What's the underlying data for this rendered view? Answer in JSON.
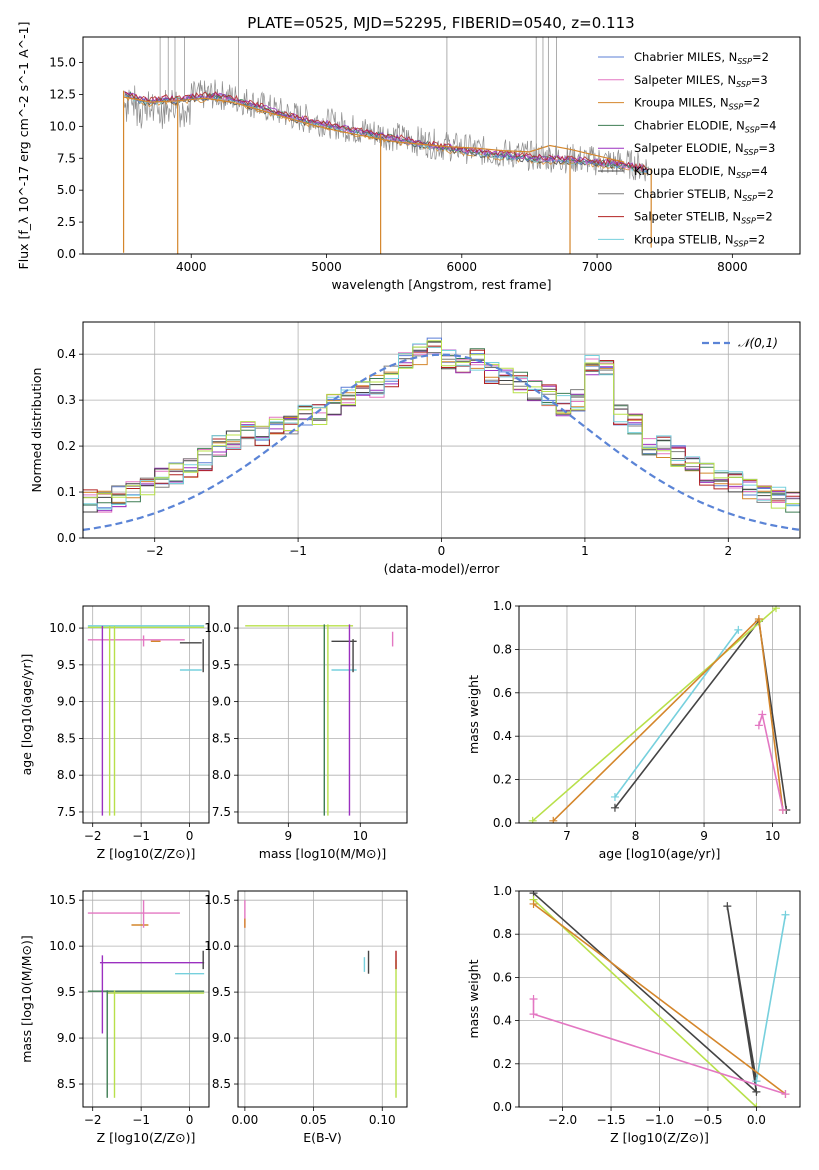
{
  "chart_data": [
    {
      "id": "spectrum",
      "type": "line",
      "title": "PLATE=0525, MJD=52295, FIBERID=0540, z=0.113",
      "xlabel": "wavelength [Angstrom, rest frame]",
      "ylabel": "Flux [f_λ 10^-17 erg cm^-2 s^-1 A^-1]",
      "xlim": [
        3200,
        8500
      ],
      "ylim": [
        0,
        17
      ],
      "xticks": [
        4000,
        5000,
        6000,
        7000,
        8000
      ],
      "yticks": [
        0.0,
        2.5,
        5.0,
        7.5,
        10.0,
        12.5,
        15.0
      ],
      "grid": false,
      "legend_position": "top-right",
      "legend": [
        {
          "name": "Chabrier MILES, N_SSP=2",
          "color": "#5b7fd6"
        },
        {
          "name": "Salpeter MILES, N_SSP=3",
          "color": "#e377c2"
        },
        {
          "name": "Kroupa MILES, N_SSP=2",
          "color": "#d4862b"
        },
        {
          "name": "Chabrier ELODIE, N_SSP=4",
          "color": "#3e7d53"
        },
        {
          "name": "Salpeter ELODIE, N_SSP=3",
          "color": "#9b30c0"
        },
        {
          "name": "Kroupa ELODIE, N_SSP=4",
          "color": "#444444"
        },
        {
          "name": "Chabrier STELIB, N_SSP=2",
          "color": "#7f7f7f"
        },
        {
          "name": "Salpeter STELIB, N_SSP=2",
          "color": "#b22222"
        },
        {
          "name": "Kroupa STELIB, N_SSP=2",
          "color": "#76d0dd"
        }
      ],
      "continuum": [
        [
          3500,
          12.8
        ],
        [
          3600,
          12.3
        ],
        [
          3700,
          12.1
        ],
        [
          3800,
          12.3
        ],
        [
          3900,
          12.2
        ],
        [
          4000,
          12.4
        ],
        [
          4200,
          12.5
        ],
        [
          4400,
          12.0
        ],
        [
          4600,
          11.3
        ],
        [
          4800,
          10.7
        ],
        [
          5000,
          10.3
        ],
        [
          5200,
          9.8
        ],
        [
          5400,
          9.4
        ],
        [
          5600,
          9.0
        ],
        [
          5800,
          8.6
        ],
        [
          6000,
          8.3
        ],
        [
          6200,
          8.0
        ],
        [
          6400,
          7.8
        ],
        [
          6600,
          7.6
        ],
        [
          6800,
          7.5
        ],
        [
          7000,
          7.3
        ],
        [
          7200,
          7.1
        ],
        [
          7400,
          6.7
        ]
      ],
      "model_curve": [
        [
          3500,
          12.3
        ],
        [
          3700,
          11.9
        ],
        [
          3900,
          12.0
        ],
        [
          4100,
          12.2
        ],
        [
          4300,
          11.9
        ],
        [
          4500,
          11.3
        ],
        [
          4700,
          10.7
        ],
        [
          4900,
          10.1
        ],
        [
          5100,
          9.6
        ],
        [
          5300,
          9.2
        ],
        [
          5500,
          8.8
        ],
        [
          5700,
          8.6
        ],
        [
          5900,
          8.4
        ],
        [
          6100,
          8.3
        ],
        [
          6300,
          8.1
        ],
        [
          6500,
          8.0
        ],
        [
          6650,
          8.5
        ],
        [
          6800,
          8.2
        ],
        [
          7000,
          7.7
        ],
        [
          7200,
          7.2
        ]
      ],
      "spikes": [
        [
          3500,
          0.1
        ],
        [
          3900,
          0.0
        ],
        [
          5400,
          0.0
        ],
        [
          6800,
          0.0
        ],
        [
          7400,
          0.5
        ]
      ]
    },
    {
      "id": "residuals",
      "type": "line",
      "xlabel": "(data-model)/error",
      "ylabel": "Normed distribution",
      "xlim": [
        -2.5,
        2.5
      ],
      "ylim": [
        0,
        0.47
      ],
      "xticks": [
        -2,
        -1,
        0,
        1,
        2
      ],
      "yticks": [
        0.0,
        0.1,
        0.2,
        0.3,
        0.4
      ],
      "grid": true,
      "legend_position": "top-right",
      "legend": [
        {
          "name": "𝒩(0,1)",
          "color": "#5b84d6"
        }
      ],
      "hist_edges_start": -2.5,
      "hist_bin_width": 0.1,
      "hist_counts": [
        0.08,
        0.08,
        0.09,
        0.1,
        0.11,
        0.13,
        0.14,
        0.15,
        0.17,
        0.2,
        0.21,
        0.23,
        0.22,
        0.24,
        0.25,
        0.27,
        0.27,
        0.29,
        0.31,
        0.33,
        0.33,
        0.35,
        0.38,
        0.4,
        0.42,
        0.39,
        0.37,
        0.39,
        0.36,
        0.35,
        0.34,
        0.32,
        0.31,
        0.29,
        0.3,
        0.38,
        0.38,
        0.27,
        0.25,
        0.2,
        0.2,
        0.18,
        0.17,
        0.14,
        0.13,
        0.12,
        0.11,
        0.1,
        0.09,
        0.08
      ],
      "normal": {
        "mean": 0,
        "sigma": 1
      }
    },
    {
      "id": "age_vs_Z",
      "type": "scatter",
      "xlabel": "Z [log10(Z/Z⊙)]",
      "ylabel": "age [log10(age/yr)]",
      "xlim": [
        -2.2,
        0.4
      ],
      "ylim": [
        7.35,
        10.3
      ],
      "xticks": [
        -2,
        -1,
        0
      ],
      "yticks": [
        7.5,
        8.0,
        8.5,
        9.0,
        9.5,
        10.0
      ],
      "grid": true,
      "hlines": [
        [
          -2.1,
          0.3,
          10.03,
          "#76d0dd"
        ],
        [
          -2.1,
          0.3,
          10.01,
          "#b8e04a"
        ],
        [
          -2.1,
          -0.1,
          9.84,
          "#e377c2"
        ],
        [
          -0.6,
          -0.8,
          9.82,
          "#d4862b"
        ],
        [
          -0.2,
          0.25,
          9.43,
          "#76d0dd"
        ],
        [
          -0.2,
          0.25,
          9.8,
          "#444444"
        ]
      ],
      "vlines": [
        [
          -1.8,
          7.45,
          10.03,
          "#9b30c0"
        ],
        [
          -1.65,
          7.45,
          10.03,
          "#b8e04a"
        ],
        [
          -1.55,
          7.45,
          10.03,
          "#b8e04a"
        ],
        [
          -0.95,
          9.75,
          9.9,
          "#e377c2"
        ],
        [
          0.28,
          9.4,
          9.85,
          "#444444"
        ]
      ]
    },
    {
      "id": "age_vs_mass",
      "type": "scatter",
      "xlabel": "mass [log10(M/M⊙)]",
      "ylabel": "",
      "xlim": [
        8.3,
        10.65
      ],
      "ylim": [
        7.35,
        10.3
      ],
      "xticks": [
        9,
        10
      ],
      "yticks": [
        7.5,
        8.0,
        8.5,
        9.0,
        9.5,
        10.0
      ],
      "grid": true,
      "hlines": [
        [
          8.4,
          9.9,
          10.03,
          "#b8e04a"
        ],
        [
          9.6,
          9.95,
          9.82,
          "#444444"
        ],
        [
          9.6,
          9.95,
          9.43,
          "#76d0dd"
        ]
      ],
      "vlines": [
        [
          9.5,
          7.45,
          10.05,
          "#3e7d53"
        ],
        [
          9.55,
          7.45,
          10.05,
          "#b8e04a"
        ],
        [
          9.85,
          7.45,
          10.05,
          "#9b30c0"
        ],
        [
          9.9,
          9.4,
          9.85,
          "#444444"
        ],
        [
          10.45,
          9.75,
          9.95,
          "#e377c2"
        ]
      ]
    },
    {
      "id": "weight_vs_age",
      "type": "line",
      "xlabel": "age [log10(age/yr)]",
      "ylabel": "mass weight",
      "xlim": [
        6.3,
        10.4
      ],
      "ylim": [
        0,
        1
      ],
      "xticks": [
        7,
        8,
        9,
        10
      ],
      "yticks": [
        0.0,
        0.2,
        0.4,
        0.6,
        0.8,
        1.0
      ],
      "grid": true,
      "series": [
        {
          "color": "#76d0dd",
          "points": [
            [
              7.7,
              0.12
            ],
            [
              9.5,
              0.89
            ]
          ]
        },
        {
          "color": "#444444",
          "points": [
            [
              7.7,
              0.07
            ],
            [
              9.8,
              0.93
            ],
            [
              10.2,
              0.06
            ]
          ]
        },
        {
          "color": "#b8e04a",
          "points": [
            [
              6.5,
              0.01
            ],
            [
              10.05,
              0.99
            ]
          ]
        },
        {
          "color": "#d4862b",
          "points": [
            [
              6.8,
              0.01
            ],
            [
              9.8,
              0.94
            ],
            [
              10.15,
              0.06
            ]
          ]
        },
        {
          "color": "#e377c2",
          "points": [
            [
              9.8,
              0.45
            ],
            [
              9.85,
              0.5
            ],
            [
              10.15,
              0.06
            ]
          ]
        }
      ]
    },
    {
      "id": "mass_vs_Z",
      "type": "scatter",
      "xlabel": "Z [log10(Z/Z⊙)]",
      "ylabel": "mass [log10(M/M⊙)]",
      "xlim": [
        -2.2,
        0.4
      ],
      "ylim": [
        8.25,
        10.6
      ],
      "xticks": [
        -2,
        -1,
        0
      ],
      "yticks": [
        8.5,
        9.0,
        9.5,
        10.0,
        10.5
      ],
      "grid": true,
      "hlines": [
        [
          -2.1,
          -0.2,
          10.36,
          "#e377c2"
        ],
        [
          -1.2,
          -0.85,
          10.23,
          "#d4862b"
        ],
        [
          -1.85,
          0.3,
          9.82,
          "#9b30c0"
        ],
        [
          -2.1,
          0.3,
          9.51,
          "#3e7d53"
        ],
        [
          -1.7,
          0.3,
          9.49,
          "#b8e04a"
        ],
        [
          -0.3,
          0.3,
          9.7,
          "#76d0dd"
        ]
      ],
      "vlines": [
        [
          -1.8,
          9.05,
          9.9,
          "#9b30c0"
        ],
        [
          -1.7,
          8.35,
          9.52,
          "#3e7d53"
        ],
        [
          -1.55,
          8.35,
          9.52,
          "#b8e04a"
        ],
        [
          -0.95,
          10.2,
          10.5,
          "#e377c2"
        ],
        [
          0.28,
          9.75,
          9.95,
          "#444444"
        ]
      ]
    },
    {
      "id": "mass_vs_ebv",
      "type": "scatter",
      "xlabel": "E(B-V)",
      "ylabel": "",
      "xlim": [
        -0.005,
        0.118
      ],
      "ylim": [
        8.25,
        10.6
      ],
      "xticks": [
        0.0,
        0.05,
        0.1
      ],
      "yticks": [
        8.5,
        9.0,
        9.5,
        10.0,
        10.5
      ],
      "grid": true,
      "vlines": [
        [
          0.0,
          10.2,
          10.5,
          "#e377c2"
        ],
        [
          0.0,
          10.2,
          10.3,
          "#d4862b"
        ],
        [
          0.087,
          9.72,
          9.88,
          "#76d0dd"
        ],
        [
          0.09,
          9.7,
          9.95,
          "#444444"
        ],
        [
          0.11,
          8.35,
          9.85,
          "#b8e04a"
        ],
        [
          0.11,
          9.75,
          9.95,
          "#b22222"
        ]
      ]
    },
    {
      "id": "weight_vs_Z",
      "type": "line",
      "xlabel": "Z [log10(Z/Z⊙)]",
      "ylabel": "mass weight",
      "xlim": [
        -2.45,
        0.45
      ],
      "ylim": [
        0,
        1
      ],
      "xticks": [
        -2.0,
        -1.5,
        -1.0,
        -0.5,
        0.0
      ],
      "yticks": [
        0.0,
        0.2,
        0.4,
        0.6,
        0.8,
        1.0
      ],
      "grid": true,
      "series": [
        {
          "color": "#444444",
          "points": [
            [
              -2.3,
              0.99
            ],
            [
              0.0,
              0.07
            ],
            [
              -0.3,
              0.93
            ],
            [
              0.0,
              0.12
            ]
          ]
        },
        {
          "color": "#76d0dd",
          "points": [
            [
              0.0,
              0.12
            ],
            [
              0.3,
              0.89
            ]
          ]
        },
        {
          "color": "#b8e04a",
          "points": [
            [
              -2.3,
              0.96
            ],
            [
              0.0,
              0.0
            ]
          ]
        },
        {
          "color": "#d4862b",
          "points": [
            [
              -2.3,
              0.94
            ],
            [
              0.3,
              0.06
            ]
          ]
        },
        {
          "color": "#e377c2",
          "points": [
            [
              -2.3,
              0.5
            ],
            [
              -2.3,
              0.43
            ],
            [
              0.3,
              0.06
            ]
          ]
        }
      ]
    }
  ]
}
